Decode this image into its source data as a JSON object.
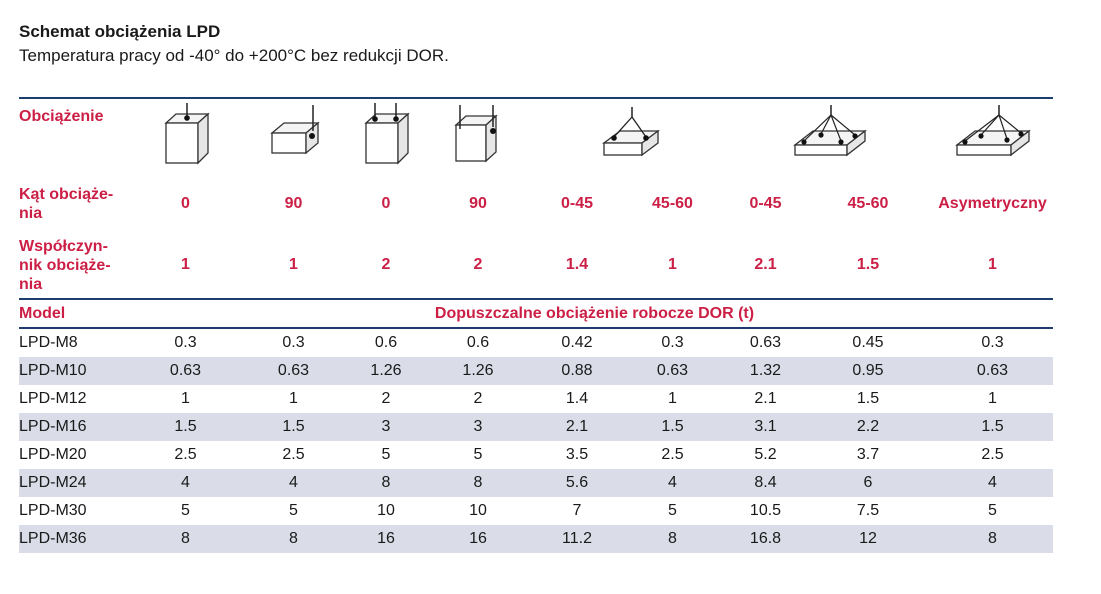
{
  "title": "Schemat obciążenia LPD",
  "subtitle": "Temperatura pracy od -40° do +200°C bez redukcji DOR.",
  "labels": {
    "load": "Obciążenie",
    "angle": [
      "Kąt obciąże-",
      "nia"
    ],
    "coefficient": [
      "Współczyn-",
      "nik obciąże-",
      "nia"
    ],
    "model": "Model",
    "permissible": "Dopuszczalne obciążenie robocze DOR (t)"
  },
  "icons": [
    "cube-single-top-load-icon",
    "block-single-side-load-icon",
    "cube-double-top-load-icon",
    "cube-double-side-load-icon",
    "plate-two-leg-sling-icon",
    "plate-four-leg-sling-icon",
    "plate-asymmetric-sling-icon"
  ],
  "angles": [
    "0",
    "90",
    "0",
    "90",
    "0-45",
    "45-60",
    "0-45",
    "45-60",
    "Asymetryczny"
  ],
  "coefficients": [
    "1",
    "1",
    "2",
    "2",
    "1.4",
    "1",
    "2.1",
    "1.5",
    "1"
  ],
  "rows": [
    {
      "model": "LPD-M8",
      "values": [
        "0.3",
        "0.3",
        "0.6",
        "0.6",
        "0.42",
        "0.3",
        "0.63",
        "0.45",
        "0.3"
      ]
    },
    {
      "model": "LPD-M10",
      "values": [
        "0.63",
        "0.63",
        "1.26",
        "1.26",
        "0.88",
        "0.63",
        "1.32",
        "0.95",
        "0.63"
      ]
    },
    {
      "model": "LPD-M12",
      "values": [
        "1",
        "1",
        "2",
        "2",
        "1.4",
        "1",
        "2.1",
        "1.5",
        "1"
      ]
    },
    {
      "model": "LPD-M16",
      "values": [
        "1.5",
        "1.5",
        "3",
        "3",
        "2.1",
        "1.5",
        "3.1",
        "2.2",
        "1.5"
      ]
    },
    {
      "model": "LPD-M20",
      "values": [
        "2.5",
        "2.5",
        "5",
        "5",
        "3.5",
        "2.5",
        "5.2",
        "3.7",
        "2.5"
      ]
    },
    {
      "model": "LPD-M24",
      "values": [
        "4",
        "4",
        "8",
        "8",
        "5.6",
        "4",
        "8.4",
        "6",
        "4"
      ]
    },
    {
      "model": "LPD-M30",
      "values": [
        "5",
        "5",
        "10",
        "10",
        "7",
        "5",
        "10.5",
        "7.5",
        "5"
      ]
    },
    {
      "model": "LPD-M36",
      "values": [
        "8",
        "8",
        "16",
        "16",
        "11.2",
        "8",
        "16.8",
        "12",
        "8"
      ]
    }
  ]
}
